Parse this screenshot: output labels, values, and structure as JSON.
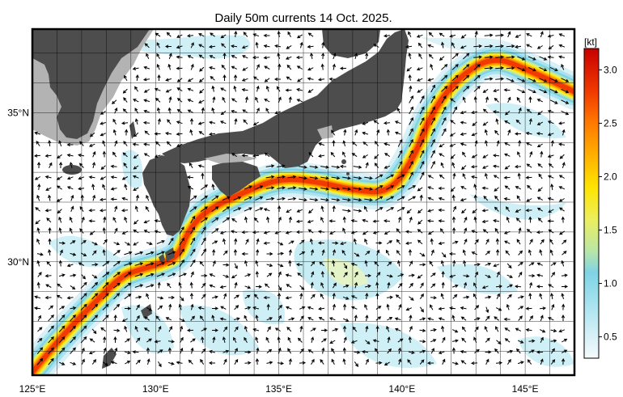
{
  "title": "Daily 50m currents 14 Oct. 2025.",
  "map": {
    "lon_range": [
      125,
      147
    ],
    "lat_range": [
      26.2,
      37.8
    ],
    "lon_ticks": [
      {
        "value": 125,
        "label": "125°E"
      },
      {
        "value": 130,
        "label": "130°E"
      },
      {
        "value": 135,
        "label": "135°E"
      },
      {
        "value": 140,
        "label": "140°E"
      },
      {
        "value": 145,
        "label": "145°E"
      }
    ],
    "lat_ticks": [
      {
        "value": 30,
        "label": "30°N"
      },
      {
        "value": 35,
        "label": "35°N"
      }
    ],
    "grid": true,
    "colors": {
      "ocean": "#ffffff",
      "land": "#4d4d4d",
      "shelf": "#b3b3b3",
      "arrow": "#000000",
      "gridline": "#000000"
    }
  },
  "chart_data": {
    "type": "heatmap",
    "title": "Daily 50m currents 14 Oct. 2025.",
    "variable": "current speed at 50m",
    "unit": "kt",
    "kuroshio_axis_lonlat": [
      [
        125.0,
        26.3
      ],
      [
        126.3,
        27.6
      ],
      [
        127.6,
        28.7
      ],
      [
        128.6,
        29.5
      ],
      [
        129.2,
        29.7
      ],
      [
        130.5,
        30.0
      ],
      [
        131.0,
        30.3
      ],
      [
        131.3,
        31.0
      ],
      [
        132.0,
        31.7
      ],
      [
        133.5,
        32.3
      ],
      [
        135.0,
        32.8
      ],
      [
        136.5,
        32.7
      ],
      [
        138.0,
        32.4
      ],
      [
        139.5,
        32.3
      ],
      [
        140.5,
        33.5
      ],
      [
        141.2,
        35.0
      ],
      [
        142.3,
        36.2
      ],
      [
        143.7,
        36.9
      ],
      [
        145.2,
        36.4
      ],
      [
        147.0,
        35.7
      ]
    ],
    "max_speed": 3.2
  },
  "colorbar": {
    "unit_label": "[kt]",
    "range": [
      0.3,
      3.2
    ],
    "ticks": [
      {
        "value": 0.5,
        "label": "0.5"
      },
      {
        "value": 1.0,
        "label": "1.0"
      },
      {
        "value": 1.5,
        "label": "1.5"
      },
      {
        "value": 2.0,
        "label": "2.0"
      },
      {
        "value": 2.5,
        "label": "2.5"
      },
      {
        "value": 3.0,
        "label": "3.0"
      }
    ],
    "color_stops": [
      {
        "value": 0.3,
        "color": "#f4fbfd"
      },
      {
        "value": 0.5,
        "color": "#d9f0f7"
      },
      {
        "value": 0.8,
        "color": "#a8e3ef"
      },
      {
        "value": 1.1,
        "color": "#7fd3e6"
      },
      {
        "value": 1.3,
        "color": "#b8e6a8"
      },
      {
        "value": 1.6,
        "color": "#ecef5e"
      },
      {
        "value": 1.9,
        "color": "#ffe400"
      },
      {
        "value": 2.2,
        "color": "#ffb000"
      },
      {
        "value": 2.5,
        "color": "#ff7a00"
      },
      {
        "value": 2.8,
        "color": "#f03a00"
      },
      {
        "value": 3.2,
        "color": "#c80000"
      }
    ]
  }
}
